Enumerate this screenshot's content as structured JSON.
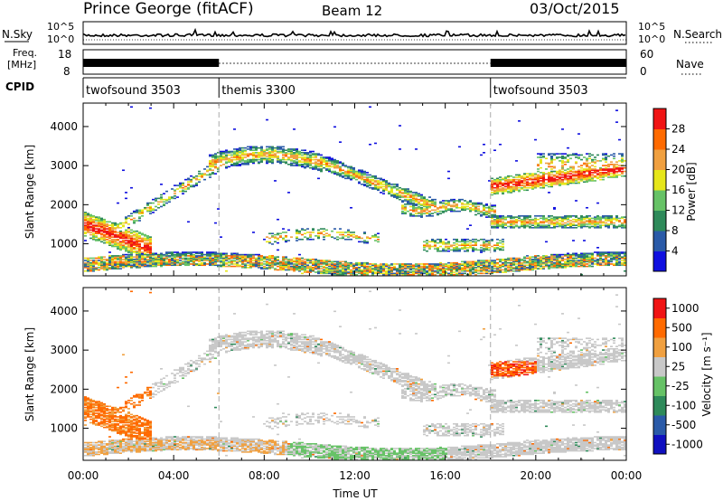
{
  "header": {
    "station": "Prince George (fitACF)",
    "beam": "Beam 12",
    "date": "03/Oct/2015"
  },
  "top_panels": {
    "nsky_label": "N.Sky",
    "noise_ticks": [
      "10^5",
      "10^0"
    ],
    "nsearch_label": "N.Search",
    "freq_label_1": "Freq.",
    "freq_label_2": "[MHz]",
    "freq_ticks": [
      "18",
      "8"
    ],
    "nave_ticks": [
      "60",
      "0"
    ],
    "nave_label": "Nave",
    "cpid_label": "CPID",
    "cpid_segments": [
      {
        "name": "twofsound 3503",
        "start_h": 0,
        "end_h": 6
      },
      {
        "name": "themis 3300",
        "start_h": 6,
        "end_h": 18
      },
      {
        "name": "twofsound 3503",
        "start_h": 18,
        "end_h": 24
      }
    ]
  },
  "chart_data": [
    {
      "type": "heatmap",
      "name": "power-panel",
      "ylabel": "Slant Range [km]",
      "yticks": [
        1000,
        2000,
        3000,
        4000
      ],
      "ylim": [
        180,
        4600
      ],
      "xlim": [
        0,
        24
      ],
      "colorbar": {
        "label": "Power [dB]",
        "ticks": [
          "4",
          "8",
          "12",
          "16",
          "20",
          "24",
          "28"
        ],
        "colors": [
          "#1010e0",
          "#2a5aa8",
          "#2e8a5a",
          "#66c266",
          "#e6e61a",
          "#f0a040",
          "#ff6a00",
          "#f01414"
        ]
      }
    },
    {
      "type": "heatmap",
      "name": "velocity-panel",
      "ylabel": "Slant Range [km]",
      "yticks": [
        1000,
        2000,
        3000,
        4000
      ],
      "ylim": [
        180,
        4600
      ],
      "xlim": [
        0,
        24
      ],
      "colorbar": {
        "label": "Velocity [m s⁻¹]",
        "ticks": [
          "1000",
          "500",
          "100",
          "25",
          "-25",
          "-100",
          "-500",
          "-1000"
        ],
        "colors": [
          "#1010c0",
          "#2a5aa8",
          "#2e8a5a",
          "#66c266",
          "#c8c8c8",
          "#f0a040",
          "#ff6a00",
          "#f01414"
        ]
      }
    }
  ],
  "xaxis": {
    "ticks": [
      "00:00",
      "04:00",
      "08:00",
      "12:00",
      "16:00",
      "20:00",
      "00:00"
    ],
    "label": "Time UT"
  },
  "colors": {
    "mode_change_line": "#aaaaaa"
  }
}
